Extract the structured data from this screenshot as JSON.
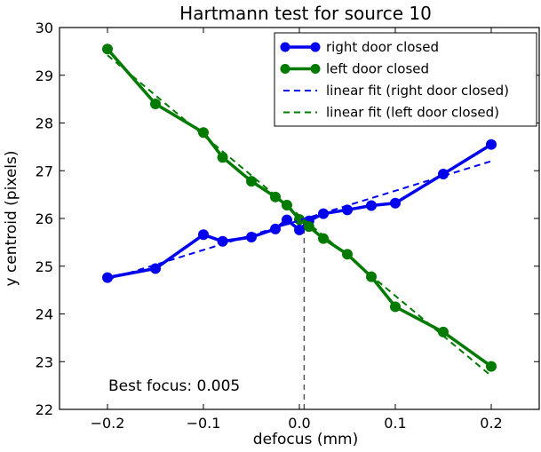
{
  "chart_data": {
    "type": "line",
    "title": "Hartmann test for source 10",
    "xlabel": "defocus (mm)",
    "ylabel": "y centroid (pixels)",
    "xlim": [
      -0.25,
      0.25
    ],
    "ylim": [
      22,
      30
    ],
    "xticks": [
      -0.2,
      -0.1,
      0.0,
      0.1,
      0.2
    ],
    "xtick_labels": [
      "−0.2",
      "−0.1",
      "0.0",
      "0.1",
      "0.2"
    ],
    "yticks": [
      22,
      23,
      24,
      25,
      26,
      27,
      28,
      29,
      30
    ],
    "ytick_labels": [
      "22",
      "23",
      "24",
      "25",
      "26",
      "27",
      "28",
      "29",
      "30"
    ],
    "grid": false,
    "legend_position": "top-right",
    "series": [
      {
        "name": "right door closed",
        "style": "line-markers",
        "color": "#0000ee",
        "x": [
          -0.2,
          -0.15,
          -0.1,
          -0.08,
          -0.05,
          -0.025,
          -0.013,
          0.0,
          0.01,
          0.025,
          0.05,
          0.075,
          0.1,
          0.15,
          0.2
        ],
        "y": [
          24.76,
          24.95,
          25.66,
          25.52,
          25.61,
          25.78,
          25.97,
          25.76,
          25.95,
          26.1,
          26.18,
          26.27,
          26.32,
          26.93,
          27.55
        ]
      },
      {
        "name": "left door closed",
        "style": "line-markers",
        "color": "#007a00",
        "x": [
          -0.2,
          -0.15,
          -0.1,
          -0.08,
          -0.05,
          -0.025,
          -0.013,
          0.0,
          0.01,
          0.025,
          0.05,
          0.075,
          0.1,
          0.15,
          0.2
        ],
        "y": [
          29.55,
          28.4,
          27.8,
          27.28,
          26.78,
          26.45,
          26.28,
          25.98,
          25.83,
          25.58,
          25.25,
          24.78,
          24.15,
          23.62,
          22.9
        ]
      },
      {
        "name": "linear fit (right door closed)",
        "style": "dashed",
        "color": "#0000ee",
        "x": [
          -0.2,
          0.2
        ],
        "y": [
          24.72,
          27.2
        ]
      },
      {
        "name": "linear fit (left door closed)",
        "style": "dashed",
        "color": "#007a00",
        "x": [
          -0.2,
          0.2
        ],
        "y": [
          29.42,
          22.7
        ]
      }
    ],
    "vline": {
      "x": 0.005,
      "color": "#555555",
      "style": "dashed"
    },
    "annotation": "Best focus: 0.005"
  }
}
